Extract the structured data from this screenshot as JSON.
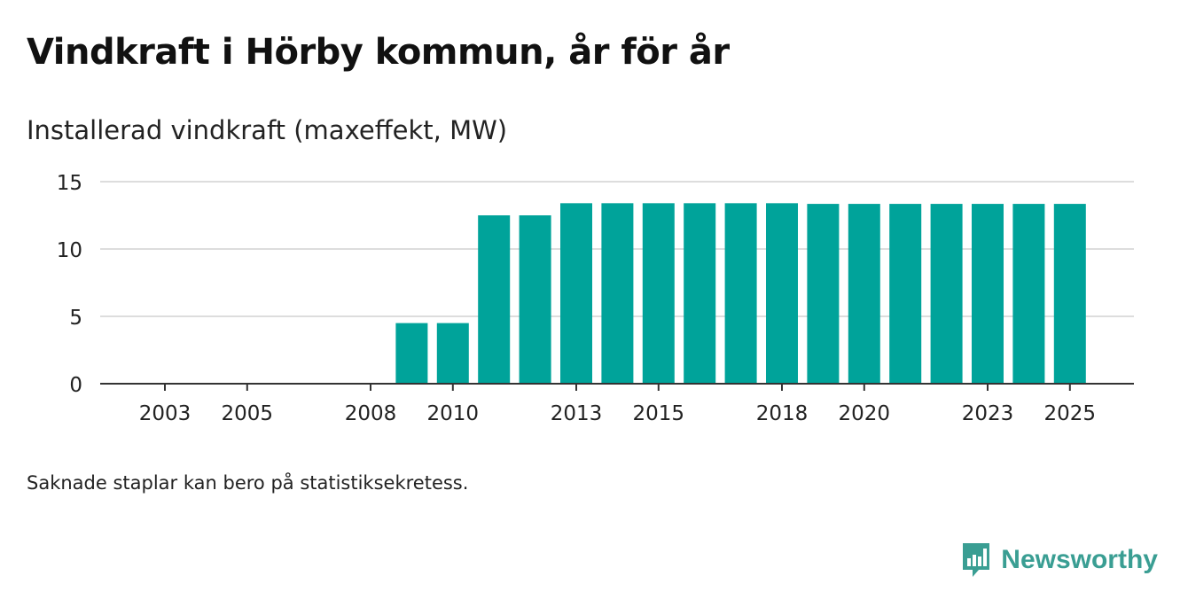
{
  "header": {
    "title": "Vindkraft i Hörby kommun, år för år",
    "subtitle": "Installerad vindkraft (maxeffekt, MW)"
  },
  "footnote": "Saknade staplar kan bero på statistiksekretess.",
  "brand": {
    "name": "Newsworthy",
    "icon": "newsworthy-logo-icon",
    "color": "#3a9e93"
  },
  "colors": {
    "bar": "#00a39a",
    "grid": "#dddddd",
    "axis": "#333333"
  },
  "chart_data": {
    "type": "bar",
    "title": "Installerad vindkraft (maxeffekt, MW)",
    "xlabel": "",
    "ylabel": "",
    "categories": [
      2002,
      2003,
      2004,
      2005,
      2006,
      2007,
      2008,
      2009,
      2010,
      2011,
      2012,
      2013,
      2014,
      2015,
      2016,
      2017,
      2018,
      2019,
      2020,
      2021,
      2022,
      2023,
      2024,
      2025
    ],
    "values": [
      null,
      null,
      null,
      null,
      null,
      null,
      null,
      4.5,
      4.5,
      12.5,
      12.5,
      13.4,
      13.4,
      13.4,
      13.4,
      13.4,
      13.4,
      13.35,
      13.35,
      13.35,
      13.35,
      13.35,
      13.35,
      13.35
    ],
    "x_ticks": [
      2003,
      2005,
      2008,
      2010,
      2013,
      2015,
      2018,
      2020,
      2023,
      2025
    ],
    "y_ticks": [
      0,
      5,
      10,
      15
    ],
    "ylim": [
      0,
      15
    ],
    "grid": true,
    "legend": "none"
  }
}
